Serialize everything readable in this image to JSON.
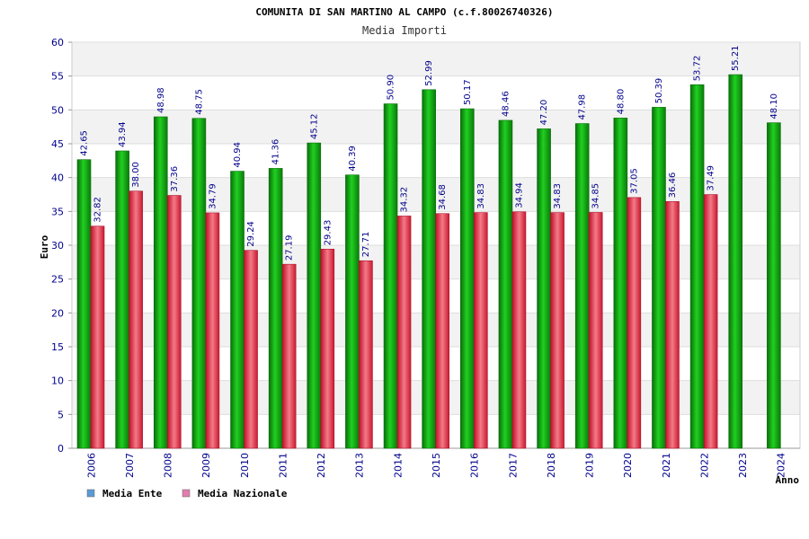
{
  "chart_data": {
    "type": "bar",
    "title": "COMUNITA DI SAN MARTINO AL CAMPO (c.f.80026740326)",
    "subtitle": "Media Importi",
    "xlabel": "Anno",
    "ylabel": "Euro",
    "ylim": [
      0,
      60
    ],
    "ytick_step": 5,
    "grid": true,
    "legend_position": "bottom-left",
    "categories": [
      "2006",
      "2007",
      "2008",
      "2009",
      "2010",
      "2011",
      "2012",
      "2013",
      "2014",
      "2015",
      "2016",
      "2017",
      "2018",
      "2019",
      "2020",
      "2021",
      "2022",
      "2023",
      "2024"
    ],
    "series": [
      {
        "name": "Media Ente",
        "color": "#1ea81e",
        "legend_color": "#5b9bd5",
        "values": [
          42.65,
          43.94,
          48.98,
          48.75,
          40.94,
          41.36,
          45.12,
          40.39,
          50.9,
          52.99,
          50.17,
          48.46,
          47.2,
          47.98,
          48.8,
          50.39,
          53.72,
          55.21,
          48.1
        ],
        "labels": [
          "42.65",
          "43.94",
          "48.98",
          "48.75",
          "40.94",
          "41.36",
          "45.12",
          "40.39",
          "50.90",
          "52.99",
          "50.17",
          "48.46",
          "47.20",
          "47.98",
          "48.80",
          "50.39",
          "53.72",
          "55.21",
          "48.10"
        ]
      },
      {
        "name": "Media Nazionale",
        "color": "#e8394a",
        "legend_color": "#e07fae",
        "values": [
          32.82,
          38.0,
          37.36,
          34.79,
          29.24,
          27.19,
          29.43,
          27.71,
          34.32,
          34.68,
          34.83,
          34.94,
          34.83,
          34.85,
          37.05,
          36.46,
          37.49,
          null,
          null
        ],
        "labels": [
          "32.82",
          "38.00",
          "37.36",
          "34.79",
          "29.24",
          "27.19",
          "29.43",
          "27.71",
          "34.32",
          "34.68",
          "34.83",
          "34.94",
          "34.83",
          "34.85",
          "37.05",
          "36.46",
          "37.49",
          "",
          ""
        ]
      }
    ]
  }
}
